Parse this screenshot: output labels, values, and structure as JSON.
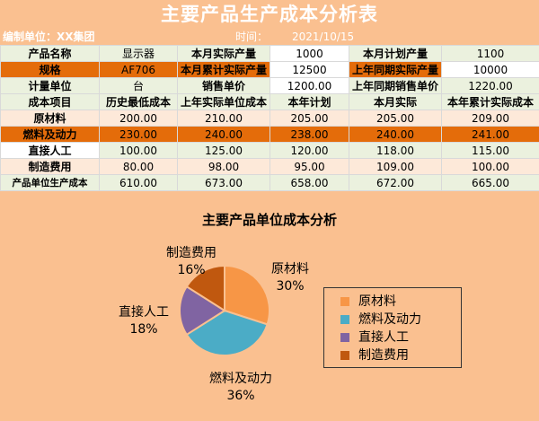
{
  "title": "主要产品生产成本分析表",
  "info": {
    "unit_label": "编制单位：XX集团",
    "time_label": "时间：",
    "time_value": "2021/10/15"
  },
  "table": {
    "r1": [
      "产品名称",
      "显示器",
      "本月实际产量",
      "1000",
      "本月计划产量",
      "1100"
    ],
    "r2": [
      "规格",
      "AF706",
      "本月累计实际产量",
      "12500",
      "上年同期实际产量",
      "10000"
    ],
    "r3": [
      "计量单位",
      "台",
      "销售单价",
      "1200.00",
      "上年同期销售单价",
      "1220.00"
    ],
    "header": [
      "成本项目",
      "历史最低成本",
      "上年实际单位成本",
      "本年计划",
      "本月实际",
      "本年累计实际成本"
    ],
    "rows": [
      [
        "原材料",
        "200.00",
        "210.00",
        "205.00",
        "205.00",
        "209.00"
      ],
      [
        "燃料及动力",
        "230.00",
        "240.00",
        "238.00",
        "240.00",
        "241.00"
      ],
      [
        "直接人工",
        "100.00",
        "125.00",
        "120.00",
        "118.00",
        "115.00"
      ],
      [
        "制造费用",
        "80.00",
        "98.00",
        "95.00",
        "109.00",
        "100.00"
      ],
      [
        "产品单位生产成本",
        "610.00",
        "673.00",
        "658.00",
        "672.00",
        "665.00"
      ]
    ]
  },
  "chart_data": {
    "type": "pie",
    "title": "主要产品单位成本分析",
    "categories": [
      "原材料",
      "燃料及动力",
      "直接人工",
      "制造费用"
    ],
    "values": [
      30,
      36,
      18,
      16
    ],
    "value_labels": [
      "30%",
      "36%",
      "18%",
      "16%"
    ],
    "colors": [
      "#f79646",
      "#4bacc6",
      "#8064a2",
      "#c0580f"
    ],
    "legend": "right"
  }
}
